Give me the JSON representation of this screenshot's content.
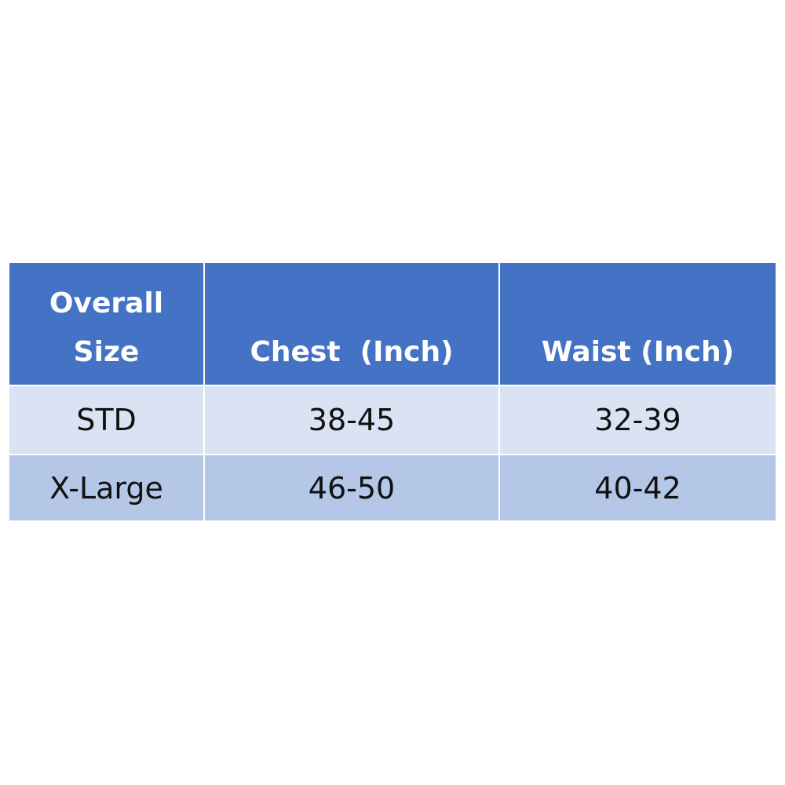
{
  "table": {
    "header": [
      "Overall Size",
      "Chest  (Inch)",
      "Waist (Inch)"
    ],
    "rows": [
      [
        "STD",
        "38-45",
        "32-39"
      ],
      [
        "X-Large",
        "46-50",
        "40-42"
      ]
    ]
  }
}
